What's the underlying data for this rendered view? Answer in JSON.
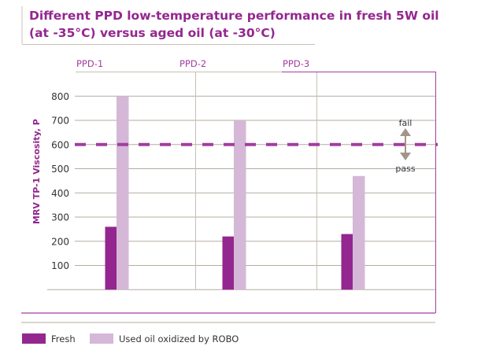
{
  "chart_data": {
    "type": "bar",
    "title_lines": [
      "Different PPD low-temperature performance in fresh 5W oil",
      "(at -35°C) versus aged oil (at -30°C)"
    ],
    "ylabel": "MRV TP-1 Viscosity, P",
    "xlabel": "",
    "categories": [
      "PPD-1",
      "PPD-2",
      "PPD-3"
    ],
    "series": [
      {
        "name": "Fresh",
        "values": [
          260,
          220,
          230
        ],
        "color": "#93278f"
      },
      {
        "name": "Used oil oxidized by ROBO",
        "values": [
          800,
          700,
          470
        ],
        "color": "#d5b8d7"
      }
    ],
    "yticks": [
      100,
      200,
      300,
      400,
      500,
      600,
      700,
      800
    ],
    "ylim": [
      0,
      800
    ],
    "grid": true,
    "threshold": {
      "value": 600,
      "color": "#a23d9f",
      "style": "dashed",
      "above_label": "fail",
      "below_label": "pass"
    },
    "legend_position": "bottom-left"
  }
}
